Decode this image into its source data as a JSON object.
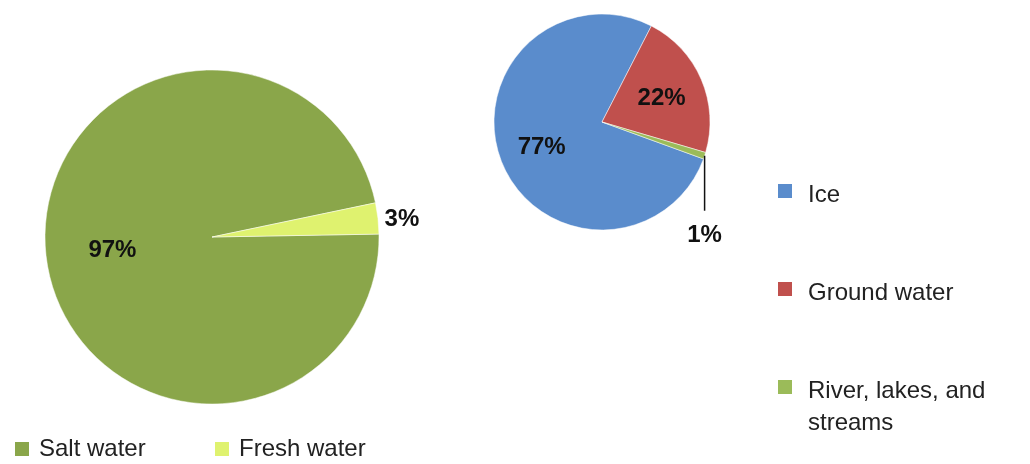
{
  "chart_data": [
    {
      "type": "pie",
      "categories": [
        "Salt water",
        "Fresh water"
      ],
      "values": [
        97,
        3
      ],
      "value_labels": [
        "97%",
        "3%"
      ],
      "colors": [
        "#8aa64a",
        "#dff26f"
      ],
      "legend": "bottom"
    },
    {
      "type": "pie",
      "categories": [
        "Ice",
        "Ground water",
        "River, lakes, and streams"
      ],
      "values": [
        77,
        22,
        1
      ],
      "value_labels": [
        "77%",
        "22%",
        "1%"
      ],
      "colors": [
        "#5a8ccc",
        "#c0504d",
        "#9bbb59"
      ],
      "legend": "right"
    }
  ]
}
